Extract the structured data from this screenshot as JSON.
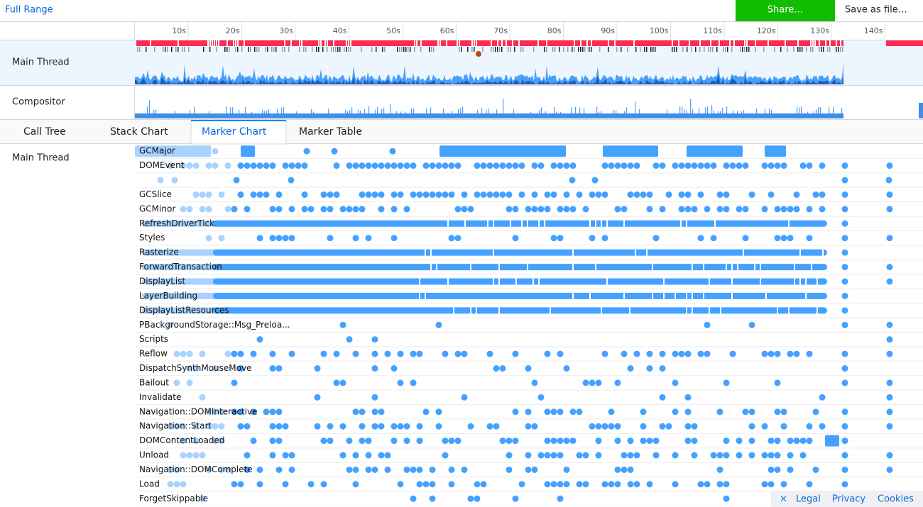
{
  "toolbar": {
    "range": "Full Range",
    "share": "Share…",
    "save": "Save as file…"
  },
  "timeline": {
    "ticks": [
      "10s",
      "20s",
      "30s",
      "40s",
      "50s",
      "60s",
      "70s",
      "80s",
      "90s",
      "100s",
      "110s",
      "120s",
      "130s",
      "140s"
    ],
    "tracks": [
      "Main Thread",
      "Compositor"
    ]
  },
  "tabs": [
    "Call Tree",
    "Stack Chart",
    "Marker Chart",
    "Marker Table"
  ],
  "marker_chart": {
    "thread": "Main Thread",
    "rows": [
      "GCMajor",
      "DOMEvent",
      "GCSlice",
      "GCMinor",
      "RefreshDriverTick",
      "Styles",
      "Rasterize",
      "ForwardTransaction",
      "DisplayList",
      "LayerBuilding",
      "DisplayListResources",
      "PBackgroundStorage::Msg_Preloa...",
      "Scripts",
      "Reflow",
      "DispatchSynthMouseMove",
      "Bailout",
      "Invalidate",
      "Navigation::DOMInteractive",
      "Navigation::Start",
      "DOMContentLoaded",
      "Unload",
      "Navigation::DOMComplete",
      "Load",
      "ForgetSkippable"
    ]
  },
  "footer": {
    "close": "×",
    "links": [
      "Legal",
      "Privacy",
      "Cookies"
    ]
  }
}
